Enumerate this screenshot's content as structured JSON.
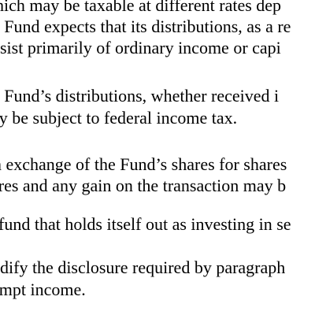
{
  "document": {
    "lines": [
      "hich may be taxable at different rates dep",
      "e Fund expects that its distributions, as a re",
      "nsist primarily of ordinary income or capi",
      "e Fund’s distributions, whether received i",
      "ay be subject to federal income tax.",
      "n exchange of the Fund’s shares for shares",
      "ares and any gain on the transaction may b",
      "fund that holds itself out as investing in se",
      "odify the disclosure required by paragraph",
      "empt income."
    ]
  }
}
